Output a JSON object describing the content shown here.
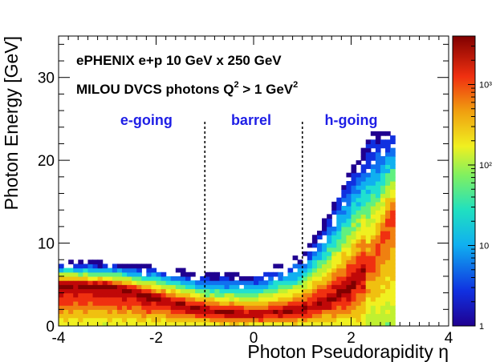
{
  "chart_data": {
    "type": "heatmap",
    "title": "",
    "xlabel": "Photon Pseudorapidity η",
    "ylabel": "Photon Energy [GeV]",
    "xlim": [
      -4,
      4
    ],
    "ylim": [
      0,
      35
    ],
    "x_ticks": [
      "-4",
      "-2",
      "0",
      "2",
      "4"
    ],
    "y_ticks": [
      "0",
      "10",
      "20",
      "30"
    ],
    "z_scale": "log",
    "z_range": [
      1,
      4000
    ],
    "z_ticks": [
      {
        "value": 1,
        "label": "1"
      },
      {
        "value": 10,
        "label": "10"
      },
      {
        "value": 100,
        "label": "10²"
      },
      {
        "value": 1000,
        "label": "10³"
      }
    ],
    "annotations": {
      "line1": "ePHENIX e+p 10 GeV x 250 GeV",
      "line2_prefix": "MILOU DVCS photons Q",
      "line2_sup1": "2",
      "line2_mid": " > 1 GeV",
      "line2_sup2": "2"
    },
    "regions": [
      {
        "label": "e-going",
        "x": -2.2
      },
      {
        "label": "barrel",
        "x": -0.05
      },
      {
        "label": "h-going",
        "x": 2.0
      }
    ],
    "boundaries": [
      -1,
      1
    ],
    "ridge": [
      {
        "eta": -4.0,
        "E": 5.2
      },
      {
        "eta": -3.0,
        "E": 5.0
      },
      {
        "eta": -2.0,
        "E": 3.6
      },
      {
        "eta": -1.0,
        "E": 2.0
      },
      {
        "eta": 0.0,
        "E": 1.4
      },
      {
        "eta": 1.0,
        "E": 2.2
      },
      {
        "eta": 1.5,
        "E": 3.2
      },
      {
        "eta": 2.0,
        "E": 5.0
      },
      {
        "eta": 2.5,
        "E": 9.0
      },
      {
        "eta": 2.8,
        "E": 14.0
      }
    ],
    "max_energy_envelope": [
      {
        "eta": -4.0,
        "E": 7.8
      },
      {
        "eta": -2.0,
        "E": 7.2
      },
      {
        "eta": -1.0,
        "E": 6.2
      },
      {
        "eta": 0.0,
        "E": 6.0
      },
      {
        "eta": 1.0,
        "E": 8.5
      },
      {
        "eta": 1.5,
        "E": 13.0
      },
      {
        "eta": 2.0,
        "E": 19.5
      },
      {
        "eta": 2.5,
        "E": 23.5
      },
      {
        "eta": 2.8,
        "E": 23.5
      }
    ],
    "eta_range": [
      -4.0,
      2.85
    ]
  }
}
